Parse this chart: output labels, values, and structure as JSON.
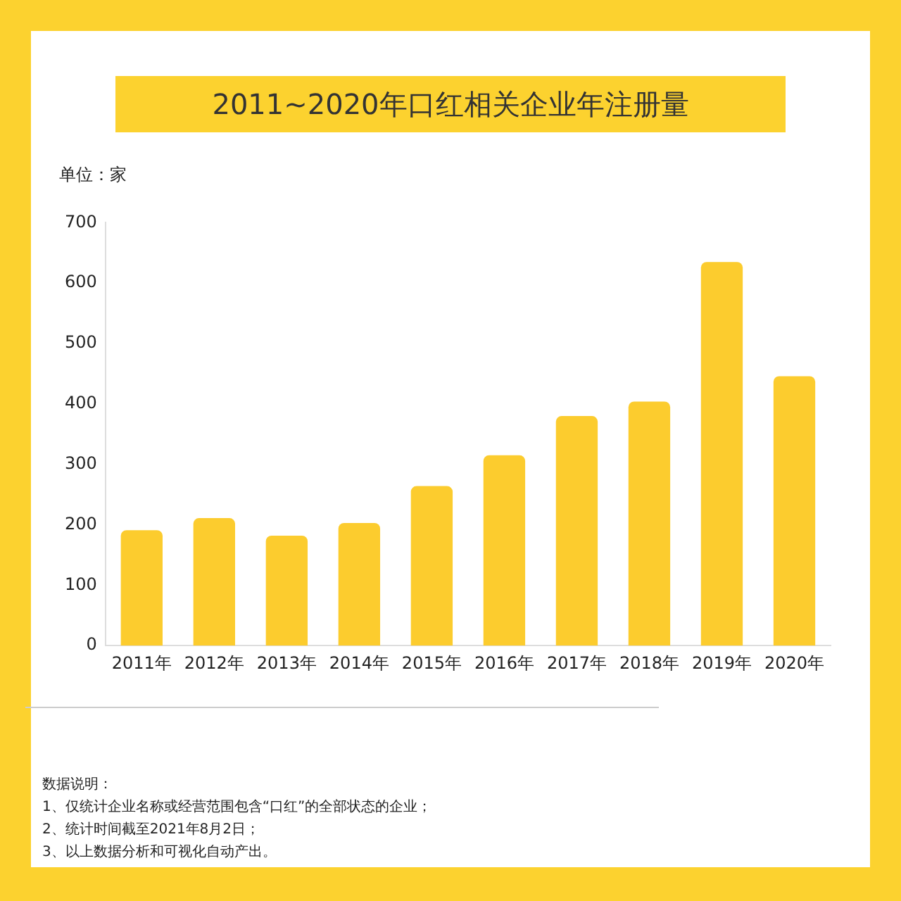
{
  "chart_data": {
    "type": "bar",
    "title": "2011~2020年口红相关企业年注册量",
    "ylabel": "单位：家",
    "categories": [
      "2011年",
      "2012年",
      "2013年",
      "2014年",
      "2015年",
      "2016年",
      "2017年",
      "2018年",
      "2019年",
      "2020年"
    ],
    "values": [
      191,
      211,
      182,
      203,
      264,
      315,
      380,
      404,
      635,
      446
    ],
    "color": "#fccc2e",
    "ylim": [
      0,
      700
    ],
    "yticks": [
      0,
      100,
      200,
      300,
      400,
      500,
      600,
      700
    ],
    "grid": false,
    "legend": false,
    "annotations": [
      "数据说明：",
      "1、仅统计企业名称或经营范围包含“口红”的全部状态的企业；",
      "2、统计时间截至2021年8月2日；",
      "3、以上数据分析和可视化自动产出。"
    ]
  }
}
